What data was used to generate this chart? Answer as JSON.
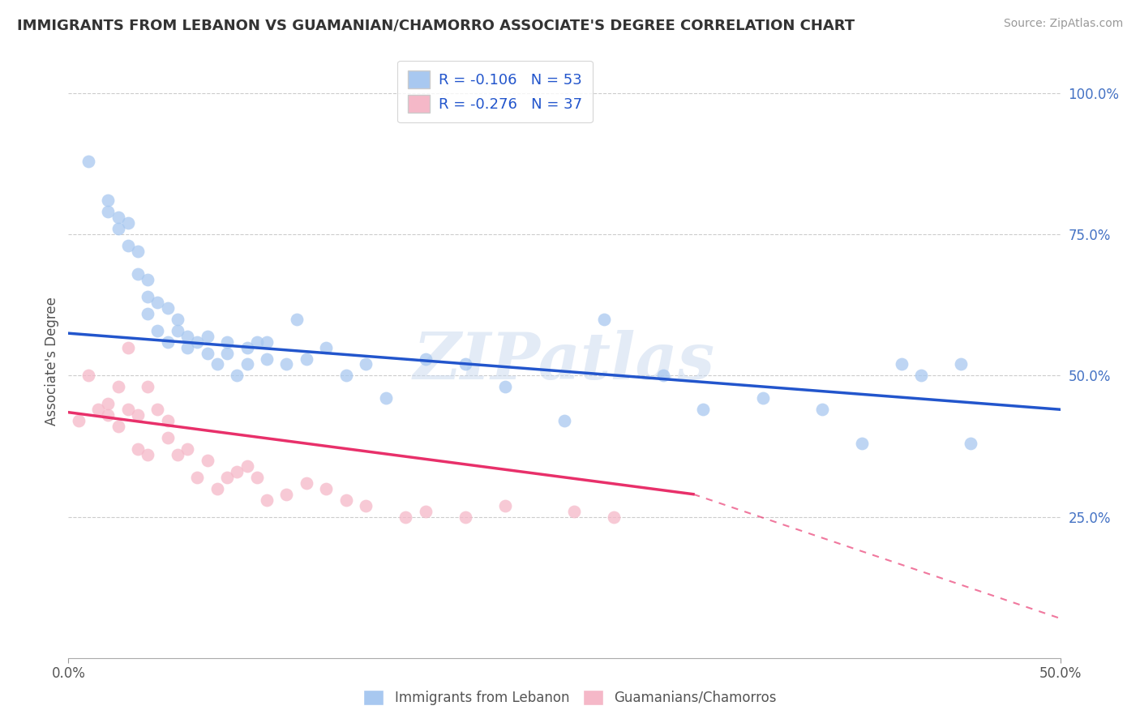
{
  "title": "IMMIGRANTS FROM LEBANON VS GUAMANIAN/CHAMORRO ASSOCIATE'S DEGREE CORRELATION CHART",
  "source": "Source: ZipAtlas.com",
  "ylabel": "Associate's Degree",
  "r_blue": -0.106,
  "n_blue": 53,
  "r_pink": -0.276,
  "n_pink": 37,
  "color_blue": "#a8c8f0",
  "color_pink": "#f5b8c8",
  "line_blue": "#2255cc",
  "line_pink": "#e8306a",
  "watermark": "ZIPatlas",
  "xlim": [
    0.0,
    0.5
  ],
  "ylim": [
    0.0,
    1.05
  ],
  "ytick_positions": [
    0.25,
    0.5,
    0.75,
    1.0
  ],
  "ytick_labels": [
    "25.0%",
    "50.0%",
    "75.0%",
    "100.0%"
  ],
  "blue_line_x0": 0.0,
  "blue_line_y0": 0.575,
  "blue_line_x1": 0.5,
  "blue_line_y1": 0.44,
  "pink_line_x0": 0.0,
  "pink_line_y0": 0.435,
  "pink_line_solid_end": 0.315,
  "pink_line_y_solid_end": 0.29,
  "pink_line_x1": 0.5,
  "pink_line_y1": 0.07,
  "blue_x": [
    0.01,
    0.02,
    0.02,
    0.025,
    0.025,
    0.03,
    0.03,
    0.035,
    0.035,
    0.04,
    0.04,
    0.04,
    0.045,
    0.045,
    0.05,
    0.05,
    0.055,
    0.055,
    0.06,
    0.06,
    0.065,
    0.07,
    0.07,
    0.075,
    0.08,
    0.08,
    0.085,
    0.09,
    0.09,
    0.095,
    0.1,
    0.1,
    0.11,
    0.115,
    0.12,
    0.13,
    0.14,
    0.15,
    0.16,
    0.18,
    0.2,
    0.22,
    0.25,
    0.27,
    0.3,
    0.32,
    0.35,
    0.38,
    0.4,
    0.42,
    0.43,
    0.45,
    0.455
  ],
  "blue_y": [
    0.88,
    0.81,
    0.79,
    0.78,
    0.76,
    0.77,
    0.73,
    0.72,
    0.68,
    0.67,
    0.64,
    0.61,
    0.63,
    0.58,
    0.62,
    0.56,
    0.6,
    0.58,
    0.57,
    0.55,
    0.56,
    0.54,
    0.57,
    0.52,
    0.54,
    0.56,
    0.5,
    0.52,
    0.55,
    0.56,
    0.53,
    0.56,
    0.52,
    0.6,
    0.53,
    0.55,
    0.5,
    0.52,
    0.46,
    0.53,
    0.52,
    0.48,
    0.42,
    0.6,
    0.5,
    0.44,
    0.46,
    0.44,
    0.38,
    0.52,
    0.5,
    0.52,
    0.38
  ],
  "pink_x": [
    0.005,
    0.01,
    0.015,
    0.02,
    0.02,
    0.025,
    0.025,
    0.03,
    0.03,
    0.035,
    0.035,
    0.04,
    0.04,
    0.045,
    0.05,
    0.05,
    0.055,
    0.06,
    0.065,
    0.07,
    0.075,
    0.08,
    0.085,
    0.09,
    0.095,
    0.1,
    0.11,
    0.12,
    0.13,
    0.14,
    0.15,
    0.17,
    0.18,
    0.2,
    0.22,
    0.255,
    0.275
  ],
  "pink_y": [
    0.42,
    0.5,
    0.44,
    0.45,
    0.43,
    0.48,
    0.41,
    0.55,
    0.44,
    0.43,
    0.37,
    0.48,
    0.36,
    0.44,
    0.42,
    0.39,
    0.36,
    0.37,
    0.32,
    0.35,
    0.3,
    0.32,
    0.33,
    0.34,
    0.32,
    0.28,
    0.29,
    0.31,
    0.3,
    0.28,
    0.27,
    0.25,
    0.26,
    0.25,
    0.27,
    0.26,
    0.25
  ]
}
